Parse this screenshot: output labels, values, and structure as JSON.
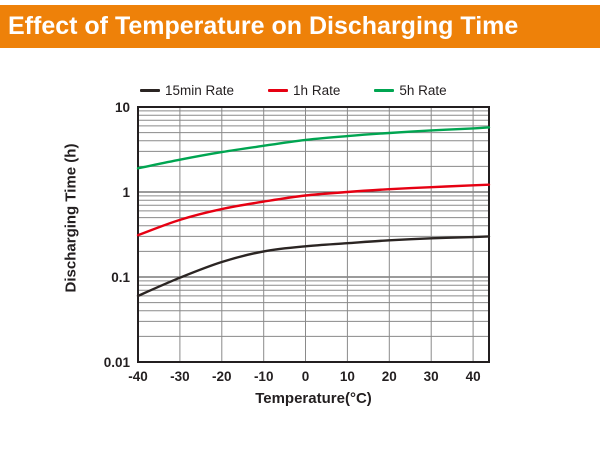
{
  "header": {
    "title": "Effect of Temperature on Discharging Time",
    "bar_color": "#ee8109",
    "text_color": "#ffffff"
  },
  "chart_data": {
    "type": "line",
    "title": "Effect of Temperature on Discharging Time",
    "xlabel": "Temperature(°C)",
    "ylabel": "Discharging Time (h)",
    "x_scale": "linear",
    "y_scale": "log",
    "xlim": [
      -40,
      43.8
    ],
    "ylim": [
      0.01,
      10
    ],
    "xticks": [
      -40,
      -30,
      -20,
      -10,
      0,
      10,
      20,
      30,
      40
    ],
    "yticks": [
      0.01,
      0.1,
      1,
      10
    ],
    "ytick_labels": [
      "0.01",
      "0.1",
      "1",
      "10"
    ],
    "grid": true,
    "legend_position": "top",
    "series": [
      {
        "name": "15min Rate",
        "color": "#2b2523",
        "x": [
          -40,
          -30,
          -20,
          -10,
          0,
          10,
          20,
          30,
          40,
          43.8
        ],
        "y": [
          0.06,
          0.098,
          0.15,
          0.2,
          0.23,
          0.25,
          0.27,
          0.285,
          0.295,
          0.3
        ]
      },
      {
        "name": "1h Rate",
        "color": "#e60012",
        "x": [
          -40,
          -30,
          -20,
          -10,
          0,
          10,
          20,
          30,
          40,
          43.8
        ],
        "y": [
          0.31,
          0.47,
          0.63,
          0.77,
          0.91,
          1.0,
          1.08,
          1.14,
          1.2,
          1.22
        ]
      },
      {
        "name": "5h Rate",
        "color": "#00a551",
        "x": [
          -40,
          -30,
          -20,
          -10,
          0,
          10,
          20,
          30,
          40,
          43.8
        ],
        "y": [
          1.9,
          2.4,
          2.95,
          3.5,
          4.1,
          4.55,
          4.95,
          5.3,
          5.6,
          5.75
        ]
      }
    ],
    "grid_color": "#8a8a8a",
    "frame_color": "#231f20"
  }
}
